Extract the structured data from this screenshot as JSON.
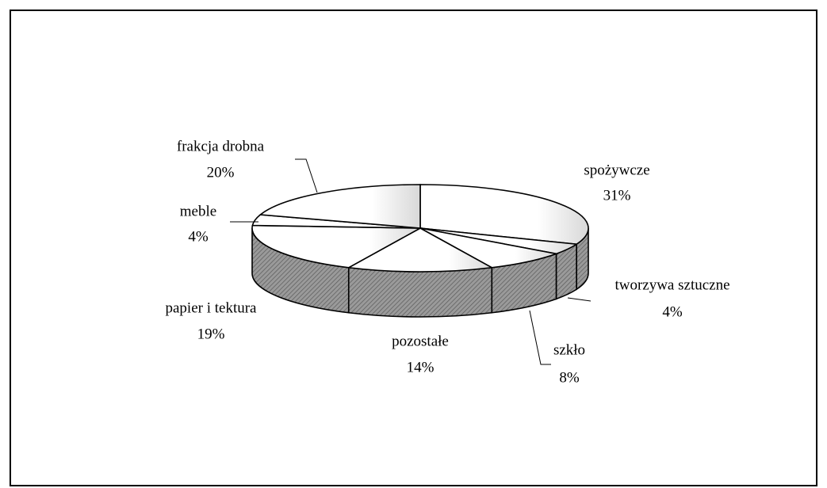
{
  "chart_data": {
    "type": "pie3d",
    "categories": [
      "spożywcze",
      "tworzywa sztuczne",
      "szkło",
      "pozostałe",
      "papier i tektura",
      "meble",
      "frakcja drobna"
    ],
    "values": [
      31,
      4,
      8,
      14,
      19,
      4,
      20
    ],
    "value_labels": [
      "31%",
      "4%",
      "8%",
      "14%",
      "19%",
      "4%",
      "20%"
    ]
  }
}
